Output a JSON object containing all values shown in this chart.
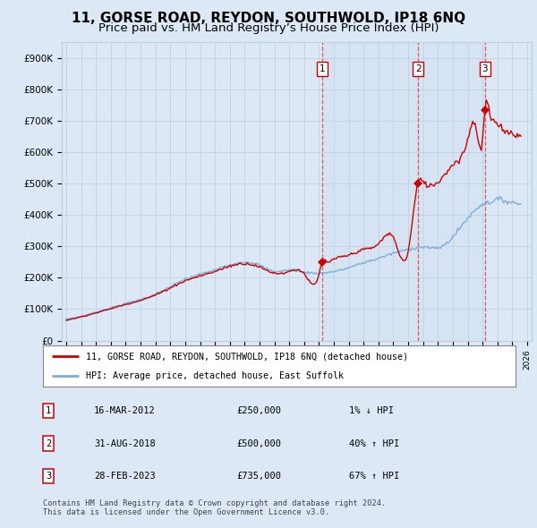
{
  "title": "11, GORSE ROAD, REYDON, SOUTHWOLD, IP18 6NQ",
  "subtitle": "Price paid vs. HM Land Registry’s House Price Index (HPI)",
  "ylim": [
    0,
    950000
  ],
  "yticks": [
    0,
    100000,
    200000,
    300000,
    400000,
    500000,
    600000,
    700000,
    800000,
    900000
  ],
  "ytick_labels": [
    "£0",
    "£100K",
    "£200K",
    "£300K",
    "£400K",
    "£500K",
    "£600K",
    "£700K",
    "£800K",
    "£900K"
  ],
  "xlim_start": 1994.7,
  "xlim_end": 2026.3,
  "sale_color": "#cc0000",
  "hpi_color": "#7aaedc",
  "background_color": "#dce8f5",
  "grid_color": "#b8cfe0",
  "shade_color": "#ccdcee",
  "title_fontsize": 11,
  "subtitle_fontsize": 9.5,
  "sales": [
    {
      "date_num": 2012.21,
      "price": 250000,
      "label": "1"
    },
    {
      "date_num": 2018.66,
      "price": 500000,
      "label": "2"
    },
    {
      "date_num": 2023.16,
      "price": 735000,
      "label": "3"
    }
  ],
  "table_rows": [
    {
      "num": "1",
      "date": "16-MAR-2012",
      "price": "£250,000",
      "change": "1% ↓ HPI"
    },
    {
      "num": "2",
      "date": "31-AUG-2018",
      "price": "£500,000",
      "change": "40% ↑ HPI"
    },
    {
      "num": "3",
      "date": "28-FEB-2023",
      "price": "£735,000",
      "change": "67% ↑ HPI"
    }
  ],
  "legend_line1": "11, GORSE ROAD, REYDON, SOUTHWOLD, IP18 6NQ (detached house)",
  "legend_line2": "HPI: Average price, detached house, East Suffolk",
  "footer": "Contains HM Land Registry data © Crown copyright and database right 2024.\nThis data is licensed under the Open Government Licence v3.0."
}
